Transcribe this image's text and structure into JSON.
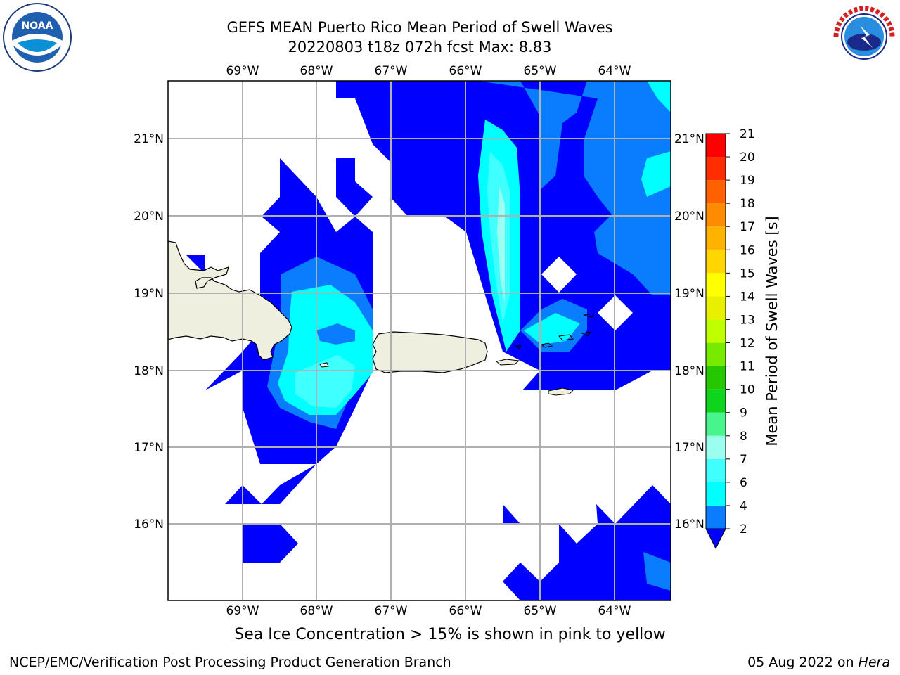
{
  "header": {
    "title_line1": "GEFS MEAN Puerto Rico Mean Period of Swell Waves",
    "title_line2": "20220803 t18z 072h fcst   Max: 8.83"
  },
  "logos": {
    "left": "NOAA",
    "left_ring_text": "NATIONAL OCEANIC AND ATMOSPHERIC ADMINISTRATION · U.S. DEPARTMENT OF COMMERCE",
    "right_ring_text": "NATIONAL WEATHER SERVICE"
  },
  "map": {
    "lon_labels": [
      "69°W",
      "68°W",
      "67°W",
      "66°W",
      "65°W",
      "64°W"
    ],
    "lat_labels": [
      "21°N",
      "20°N",
      "19°N",
      "18°N",
      "17°N",
      "16°N"
    ],
    "land_color": "#efefe0",
    "grid_color": "#b0b0b0"
  },
  "colorbar": {
    "label": "Mean Period of Swell Waves [s]",
    "ticks": [
      "2",
      "4",
      "6",
      "7",
      "8",
      "9",
      "10",
      "11",
      "12",
      "13",
      "14",
      "15",
      "16",
      "17",
      "18",
      "19",
      "20",
      "21"
    ],
    "colors": [
      "#0000ff",
      "#0a7dff",
      "#00ffff",
      "#40ffff",
      "#9bfff0",
      "#47f58c",
      "#0ed51c",
      "#26c700",
      "#78ea00",
      "#c0ff00",
      "#e8f000",
      "#ffff00",
      "#ffd600",
      "#ffb300",
      "#ff8c00",
      "#ff6000",
      "#ff2d00",
      "#ff0000"
    ],
    "under_color": "#0000ff"
  },
  "subtitle": "Sea Ice Concentration > 15% is shown in pink to yellow",
  "footer": {
    "left": "NCEP/EMC/Verification Post Processing Product Generation Branch",
    "date": "05 Aug 2022 on ",
    "host": "Hera"
  }
}
